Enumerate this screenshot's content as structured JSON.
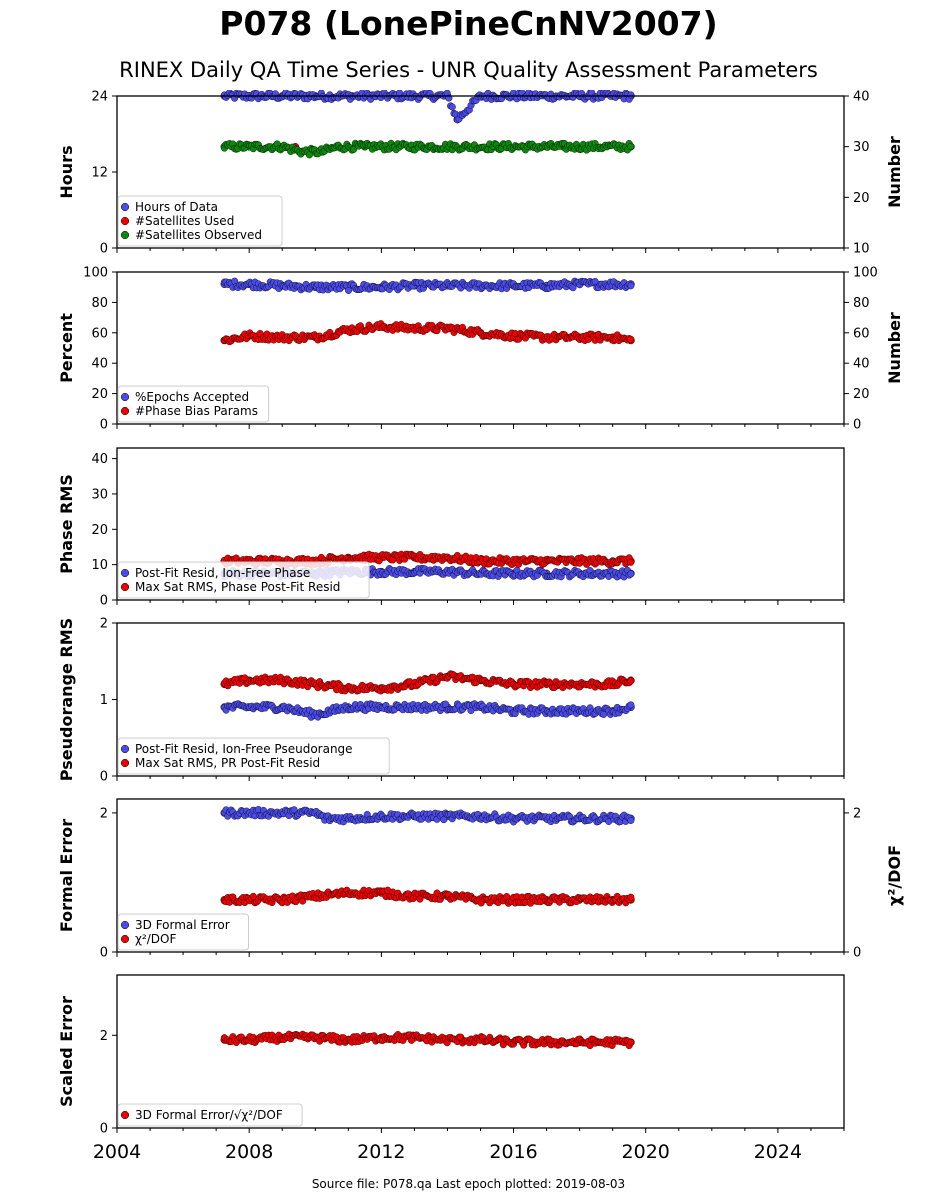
{
  "header": {
    "title": "P078 (LonePineCnNV2007)",
    "subtitle": "RINEX Daily QA Time Series - UNR Quality Assessment Parameters"
  },
  "footer": {
    "text": "Source file: P078.qa Last epoch plotted: 2019-08-03"
  },
  "colors": {
    "blue": "#4b4bea",
    "red": "#ee0000",
    "green": "#0a8a0a",
    "dark": "#111144"
  },
  "chart_data": [
    {
      "type": "scatter",
      "ylabel": "Hours",
      "ylim": [
        0,
        24
      ],
      "yticks": [
        0,
        12,
        24
      ],
      "right_axis": {
        "label": "Number",
        "ylim": [
          10,
          40
        ],
        "ticks": [
          10,
          20,
          30,
          40
        ]
      },
      "legend": [
        "Hours of Data",
        "#Satellites Used",
        "#Satellites Observed"
      ],
      "legend_placement": "lower-left",
      "series": [
        {
          "name": "Hours of Data",
          "axis": "left",
          "x": [
            2007.25,
            2008,
            2009,
            2010,
            2011,
            2012,
            2013,
            2014,
            2014.3,
            2015,
            2016,
            2017,
            2018,
            2019,
            2019.55
          ],
          "y": [
            24,
            24,
            24,
            24,
            24,
            24,
            24,
            24,
            20.3,
            24,
            24,
            24,
            24,
            24,
            24
          ]
        },
        {
          "name": "#Satellites Used",
          "axis": "right",
          "x": [
            2009.4
          ],
          "y": [
            30.0
          ]
        },
        {
          "name": "#Satellites Observed",
          "axis": "right",
          "x": [
            2007.25,
            2008,
            2009,
            2009.6,
            2010.2,
            2010.7,
            2011.5,
            2012.5,
            2013.5,
            2014.5,
            2015.5,
            2016.5,
            2017.5,
            2018.5,
            2019.55
          ],
          "y": [
            30,
            30,
            30,
            29,
            29,
            30,
            30,
            30,
            30,
            30,
            30,
            30,
            30,
            30,
            30
          ]
        }
      ]
    },
    {
      "type": "scatter",
      "ylabel": "Percent",
      "ylim": [
        0,
        100
      ],
      "yticks": [
        0,
        20,
        40,
        60,
        80,
        100
      ],
      "right_axis": {
        "label": "Number",
        "ylim": [
          0,
          100
        ],
        "ticks": [
          0,
          20,
          40,
          60,
          80,
          100
        ]
      },
      "legend": [
        "%Epochs Accepted",
        "#Phase Bias Params"
      ],
      "legend_placement": "lower-left",
      "series": [
        {
          "name": "%Epochs Accepted",
          "axis": "left",
          "x": [
            2007.25,
            2008,
            2009,
            2010,
            2011,
            2012,
            2013,
            2014,
            2015,
            2016,
            2017,
            2018,
            2019,
            2019.55
          ],
          "y": [
            92,
            92,
            91,
            90,
            90,
            90,
            91,
            91,
            91,
            91,
            91,
            92,
            92,
            92
          ]
        },
        {
          "name": "#Phase Bias Params",
          "axis": "right",
          "x": [
            2007.25,
            2008,
            2009,
            2010,
            2011,
            2012,
            2013,
            2014,
            2015,
            2016,
            2017,
            2018,
            2019,
            2019.55
          ],
          "y": [
            55,
            58,
            57,
            57,
            62,
            64,
            63,
            63,
            60,
            58,
            57,
            57,
            57,
            55
          ]
        }
      ]
    },
    {
      "type": "scatter",
      "ylabel": "Phase RMS",
      "ylim": [
        0,
        43
      ],
      "yticks": [
        0,
        10,
        20,
        30,
        40
      ],
      "legend": [
        "Post-Fit Resid, Ion-Free Phase",
        "Max Sat RMS, Phase Post-Fit Resid"
      ],
      "legend_placement": "lower-left",
      "series": [
        {
          "name": "Post-Fit Resid, Ion-Free Phase",
          "x": [
            2007.25,
            2008,
            2009,
            2010,
            2011,
            2012,
            2013,
            2014,
            2015,
            2016,
            2017,
            2018,
            2019,
            2019.55
          ],
          "y": [
            7.5,
            7.5,
            7.5,
            7.5,
            8,
            8,
            8,
            8,
            7.5,
            7.5,
            7.5,
            7.5,
            7.5,
            7.5
          ]
        },
        {
          "name": "Max Sat RMS, Phase Post-Fit Resid",
          "x": [
            2007.25,
            2008,
            2009,
            2010,
            2011,
            2012,
            2013,
            2014,
            2015,
            2016,
            2017,
            2018,
            2019,
            2019.55
          ],
          "y": [
            11,
            11,
            11,
            11,
            12,
            12,
            12,
            12,
            11,
            11,
            11,
            11,
            11,
            11
          ]
        }
      ]
    },
    {
      "type": "scatter",
      "ylabel": "Pseudorange RMS",
      "ylim": [
        0,
        2
      ],
      "yticks": [
        0,
        1,
        2
      ],
      "legend": [
        "Post-Fit Resid, Ion-Free Pseudorange",
        "Max Sat RMS, PR Post-Fit Resid"
      ],
      "legend_placement": "lower-left",
      "series": [
        {
          "name": "Post-Fit Resid, Ion-Free Pseudorange",
          "x": [
            2007.25,
            2008,
            2009,
            2010,
            2011,
            2012,
            2013,
            2014,
            2015,
            2016,
            2017,
            2018,
            2019,
            2019.55
          ],
          "y": [
            0.9,
            0.9,
            0.9,
            0.8,
            0.9,
            0.9,
            0.9,
            0.9,
            0.9,
            0.85,
            0.85,
            0.85,
            0.85,
            0.9
          ]
        },
        {
          "name": "Max Sat RMS, PR Post-Fit Resid",
          "x": [
            2007.25,
            2008,
            2009,
            2010,
            2011,
            2012,
            2013,
            2014,
            2015,
            2016,
            2017,
            2018,
            2019,
            2019.55
          ],
          "y": [
            1.2,
            1.25,
            1.25,
            1.2,
            1.15,
            1.15,
            1.2,
            1.3,
            1.25,
            1.2,
            1.2,
            1.2,
            1.2,
            1.25
          ]
        }
      ]
    },
    {
      "type": "scatter",
      "ylabel": "Formal Error",
      "ylim": [
        0,
        2.2
      ],
      "yticks": [
        0,
        2
      ],
      "right_axis": {
        "label": "χ²/DOF",
        "ylim": [
          0,
          2.2
        ],
        "ticks": [
          0,
          2
        ]
      },
      "legend": [
        "3D Formal Error",
        "χ²/DOF"
      ],
      "legend_placement": "lower-left",
      "series": [
        {
          "name": "3D Formal Error",
          "axis": "left",
          "x": [
            2007.25,
            2008,
            2009,
            2010,
            2010.3,
            2011,
            2012,
            2013,
            2014,
            2015,
            2016,
            2017,
            2018,
            2019,
            2019.55
          ],
          "y": [
            2,
            2,
            2,
            2,
            1.92,
            1.92,
            1.95,
            1.95,
            1.95,
            1.95,
            1.92,
            1.92,
            1.92,
            1.92,
            1.92
          ]
        },
        {
          "name": "χ²/DOF",
          "axis": "right",
          "x": [
            2007.25,
            2008,
            2009,
            2010,
            2011,
            2012,
            2013,
            2014,
            2015,
            2016,
            2017,
            2018,
            2019,
            2019.55
          ],
          "y": [
            0.75,
            0.75,
            0.75,
            0.8,
            0.85,
            0.85,
            0.8,
            0.8,
            0.75,
            0.75,
            0.75,
            0.75,
            0.75,
            0.75
          ]
        }
      ]
    },
    {
      "type": "scatter",
      "ylabel": "Scaled Error",
      "ylim": [
        0,
        3.3
      ],
      "yticks": [
        0,
        2
      ],
      "xlim": [
        2004,
        2026
      ],
      "xticks": [
        2004,
        2008,
        2012,
        2016,
        2020,
        2024
      ],
      "legend": [
        "3D Formal Error/√χ²/DOF"
      ],
      "legend_placement": "lower-left",
      "series": [
        {
          "name": "3D Formal Error/√χ²/DOF",
          "x": [
            2007.25,
            2008,
            2009,
            2010,
            2011,
            2012,
            2013,
            2014,
            2015,
            2016,
            2017,
            2018,
            2019,
            2019.55
          ],
          "y": [
            1.9,
            1.9,
            1.95,
            1.95,
            1.9,
            1.95,
            1.95,
            1.9,
            1.9,
            1.85,
            1.85,
            1.85,
            1.85,
            1.85
          ]
        }
      ]
    }
  ]
}
